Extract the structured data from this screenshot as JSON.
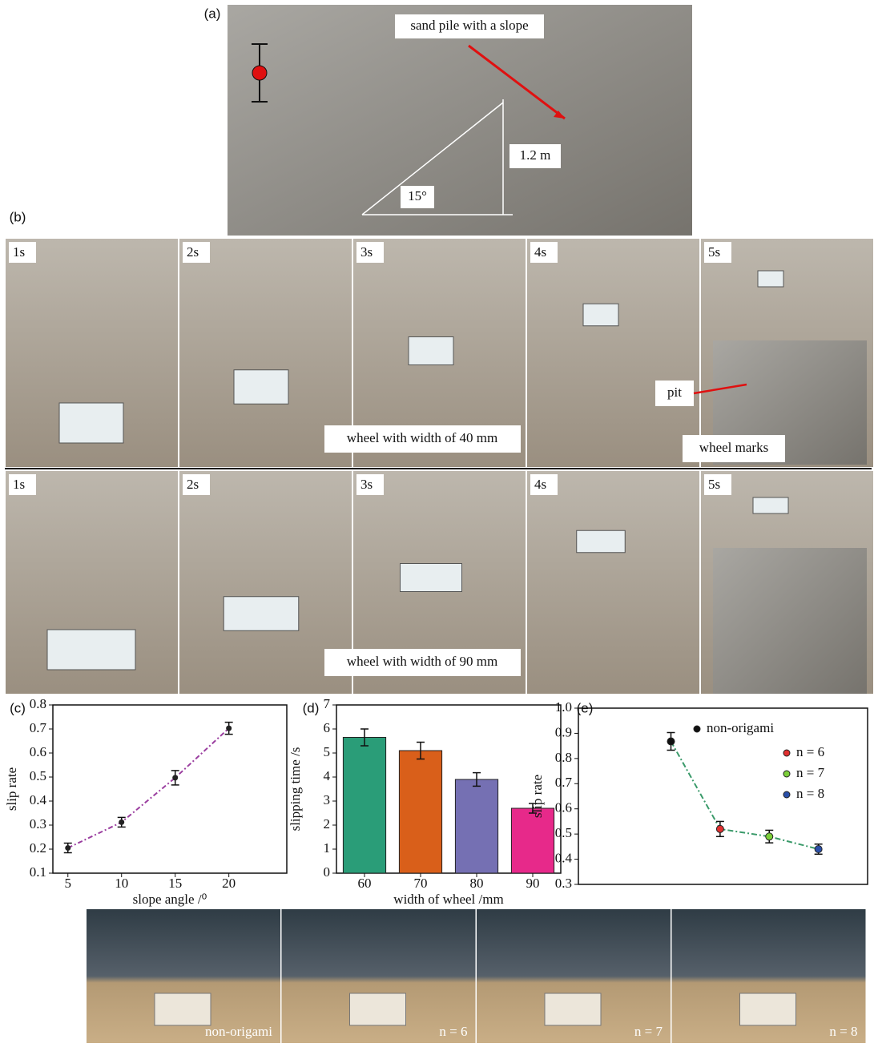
{
  "panel_labels": [
    "(a)",
    "(b)",
    "(c)",
    "(d)",
    "(e)"
  ],
  "photo_a": {
    "caption": "sand pile with a slope",
    "height": "1.2 m",
    "angle": "15°"
  },
  "photo_b": {
    "rows": [
      {
        "frames": [
          "1s",
          "2s",
          "3s",
          "4s",
          "5s"
        ],
        "caption": "wheel with width of 40 mm",
        "inset_labels": [
          "pit",
          "wheel marks"
        ]
      },
      {
        "frames": [
          "1s",
          "2s",
          "3s",
          "4s",
          "5s"
        ],
        "caption": "wheel with width of 90 mm"
      }
    ]
  },
  "photo_bottom": {
    "labels": [
      "non-origami",
      "n = 6",
      "n = 7",
      "n = 8"
    ]
  },
  "chart_data": [
    {
      "type": "line",
      "x": [
        5,
        10,
        15,
        20
      ],
      "values": [
        0.205,
        0.312,
        0.497,
        0.703
      ],
      "errors": [
        0.02,
        0.02,
        0.03,
        0.025
      ],
      "color": "#9b3fa0",
      "xlim": [
        3.6,
        25.4
      ],
      "xticks": [
        5,
        10,
        15,
        20
      ],
      "ylim": [
        0.1,
        0.8
      ],
      "yticks": [
        0.1,
        0.2,
        0.3,
        0.4,
        0.5,
        0.6,
        0.7,
        0.8
      ],
      "xlabel": "slope angle /⁰",
      "ylabel": "slip rate"
    },
    {
      "type": "bar",
      "categories": [
        "60",
        "70",
        "80",
        "90"
      ],
      "values": [
        5.65,
        5.1,
        3.9,
        2.7
      ],
      "errors": [
        0.35,
        0.35,
        0.28,
        0.2
      ],
      "colors": [
        "#2a9d78",
        "#d95f1a",
        "#7570b3",
        "#e7298a"
      ],
      "ylim": [
        0,
        7
      ],
      "yticks": [
        0,
        1,
        2,
        3,
        4,
        5,
        6,
        7
      ],
      "xlabel": "width of wheel /mm",
      "ylabel": "slipping time /s"
    },
    {
      "type": "scatter",
      "categories": [
        null,
        null,
        null,
        null
      ],
      "line_color": "#3a9a6a",
      "series": [
        {
          "name": "non-origami",
          "color": "#111111",
          "values": [
            0.868,
            null,
            null,
            null
          ],
          "errors": [
            0.035,
            null,
            null,
            null
          ]
        },
        {
          "name": "n = 6",
          "color": "#e03030",
          "values": [
            null,
            0.52,
            null,
            null
          ],
          "errors": [
            null,
            0.03,
            null,
            null
          ]
        },
        {
          "name": "n = 7",
          "color": "#7ccf3a",
          "values": [
            null,
            null,
            0.49,
            null
          ],
          "errors": [
            null,
            null,
            0.025,
            null
          ]
        },
        {
          "name": "n = 8",
          "color": "#2a4fa8",
          "values": [
            null,
            null,
            null,
            0.44
          ],
          "errors": [
            null,
            null,
            null,
            0.02
          ]
        }
      ],
      "ylim": [
        0.3,
        1.0
      ],
      "yticks": [
        {
          "value": 0.3,
          "label": "0.3"
        },
        {
          "value": 0.4,
          "label": "0.4"
        },
        {
          "value": 0.5,
          "label": "0.5"
        },
        {
          "value": 0.6,
          "label": "0.6"
        },
        {
          "value": 0.7,
          "label": "0.7"
        },
        {
          "value": 0.8,
          "label": "0.8"
        },
        {
          "value": 0.9,
          "label": "0.9"
        },
        {
          "value": 1.0,
          "label": "1.0"
        }
      ],
      "ylabel": "slip rate"
    }
  ]
}
